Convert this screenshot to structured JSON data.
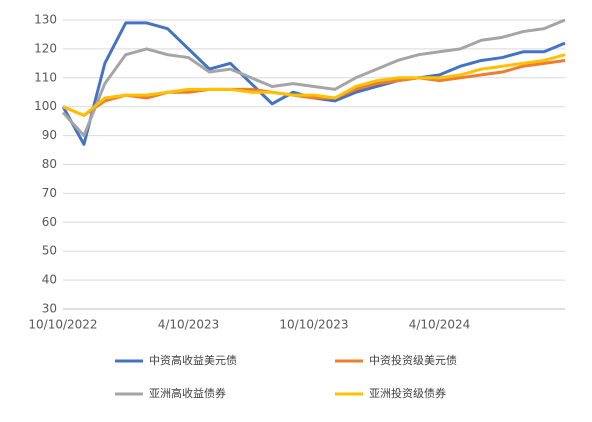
{
  "chart_data": {
    "type": "line",
    "categories": [
      "10/10/2022",
      null,
      null,
      null,
      null,
      null,
      "4/10/2023",
      null,
      null,
      null,
      null,
      null,
      "10/10/2023",
      null,
      null,
      null,
      null,
      null,
      "4/10/2024",
      null,
      null,
      null,
      null,
      null,
      null
    ],
    "series": [
      {
        "name": "中资高收益美元债",
        "color": "#4472c4",
        "values": [
          100,
          87,
          115,
          129,
          129,
          127,
          120,
          113,
          115,
          108,
          101,
          105,
          103,
          102,
          105,
          107,
          109,
          110,
          111,
          114,
          116,
          117,
          119,
          119,
          122
        ]
      },
      {
        "name": "中资投资级美元债",
        "color": "#ed7d31",
        "values": [
          100,
          97,
          102,
          104,
          103,
          105,
          105,
          106,
          106,
          106,
          105,
          104,
          103,
          103,
          106,
          108,
          109,
          110,
          109,
          110,
          111,
          112,
          114,
          115,
          116
        ]
      },
      {
        "name": "亚洲高收益债券",
        "color": "#a5a5a5",
        "values": [
          98,
          90,
          108,
          118,
          120,
          118,
          117,
          112,
          113,
          110,
          107,
          108,
          107,
          106,
          110,
          113,
          116,
          118,
          119,
          120,
          123,
          124,
          126,
          127,
          130
        ]
      },
      {
        "name": "亚洲投资级债券",
        "color": "#ffc000",
        "values": [
          100,
          97,
          103,
          104,
          104,
          105,
          106,
          106,
          106,
          105,
          105,
          104,
          104,
          103,
          107,
          109,
          110,
          110,
          110,
          111,
          113,
          114,
          115,
          116,
          118
        ]
      }
    ],
    "ylim": [
      30,
      130
    ],
    "yticks": [
      30,
      40,
      50,
      60,
      70,
      80,
      90,
      100,
      110,
      120,
      130
    ],
    "grid": true
  }
}
